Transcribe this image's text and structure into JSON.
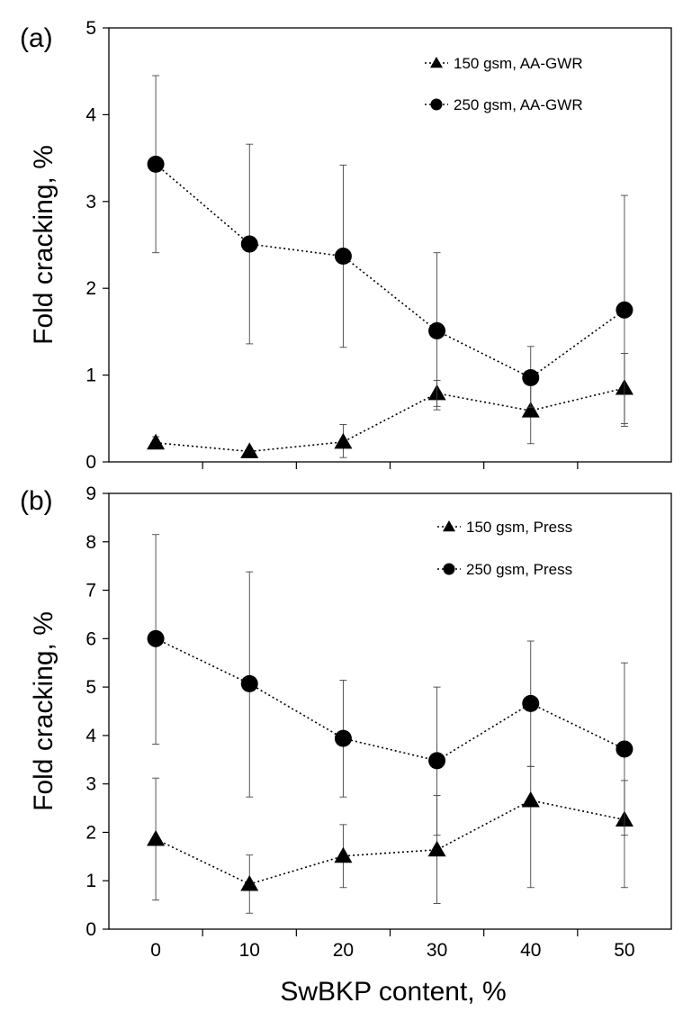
{
  "chart_data": [
    {
      "type": "line",
      "panel_label": "(a)",
      "ylabel": "Fold cracking, %",
      "xlabel": "SwBKP content, %",
      "x": [
        0,
        10,
        20,
        30,
        40,
        50
      ],
      "ylim": [
        0,
        5
      ],
      "xlim": [
        -5,
        55
      ],
      "yticks": [
        0,
        1,
        2,
        3,
        4,
        5
      ],
      "xticks": [],
      "grid": false,
      "legend_position": "top-right",
      "series": [
        {
          "name": "150 gsm, AA-GWR",
          "marker": "triangle",
          "values": [
            0.22,
            0.12,
            0.23,
            0.79,
            0.59,
            0.85
          ],
          "err_low": [
            0.15,
            0.12,
            0.05,
            0.6,
            0.21,
            0.41
          ],
          "err_high": [
            0.29,
            0.12,
            0.43,
            0.94,
            0.97,
            1.25
          ]
        },
        {
          "name": "250 gsm, AA-GWR",
          "marker": "circle",
          "values": [
            3.43,
            2.51,
            2.37,
            1.51,
            0.97,
            1.75
          ],
          "err_low": [
            2.41,
            1.36,
            1.32,
            0.64,
            0.63,
            0.44
          ],
          "err_high": [
            4.45,
            3.66,
            3.42,
            2.41,
            1.33,
            3.07
          ]
        }
      ]
    },
    {
      "type": "line",
      "panel_label": "(b)",
      "ylabel": "Fold cracking, %",
      "xlabel": "SwBKP content, %",
      "x": [
        0,
        10,
        20,
        30,
        40,
        50
      ],
      "ylim": [
        0,
        9
      ],
      "xlim": [
        -5,
        55
      ],
      "yticks": [
        0,
        1,
        2,
        3,
        4,
        5,
        6,
        7,
        8,
        9
      ],
      "xticks": [
        0,
        10,
        20,
        30,
        40,
        50
      ],
      "grid": false,
      "legend_position": "top-right",
      "series": [
        {
          "name": "150 gsm, Press",
          "marker": "triangle",
          "values": [
            1.86,
            0.93,
            1.51,
            1.64,
            2.66,
            2.26
          ],
          "err_low": [
            0.6,
            0.33,
            0.86,
            0.53,
            0.86,
            0.86
          ],
          "err_high": [
            3.12,
            1.53,
            2.16,
            2.76,
            3.36,
            3.07
          ]
        },
        {
          "name": "250 gsm, Press",
          "marker": "circle",
          "values": [
            6.0,
            5.07,
            3.94,
            3.48,
            4.66,
            3.72
          ],
          "err_low": [
            3.82,
            2.73,
            2.73,
            1.94,
            3.36,
            1.94
          ],
          "err_high": [
            8.15,
            7.38,
            5.14,
            5.0,
            5.95,
            5.5
          ]
        }
      ]
    }
  ]
}
